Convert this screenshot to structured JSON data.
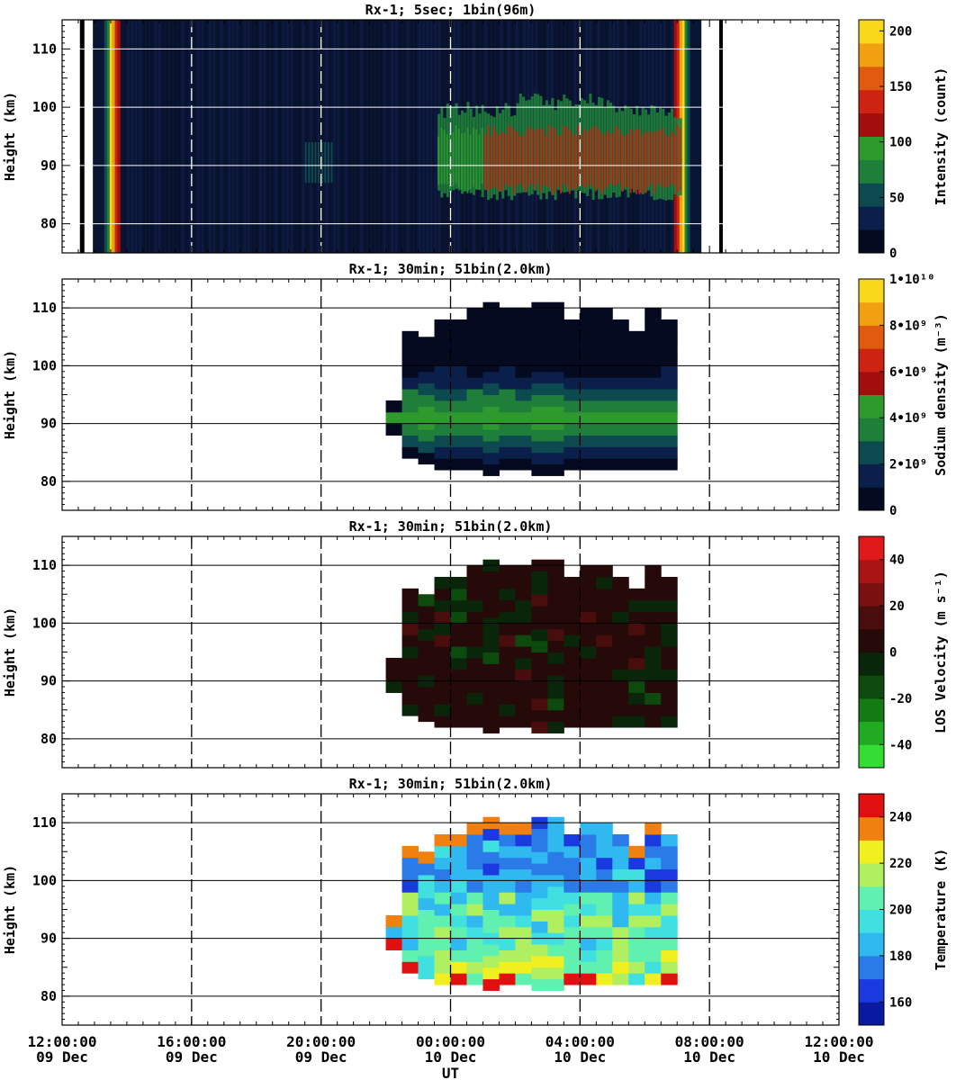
{
  "figure": {
    "xlabel": "UT",
    "x_ticks": [
      {
        "time": "12:00:00",
        "day": "09 Dec"
      },
      {
        "time": "16:00:00",
        "day": "09 Dec"
      },
      {
        "time": "20:00:00",
        "day": "09 Dec"
      },
      {
        "time": "00:00:00",
        "day": "10 Dec"
      },
      {
        "time": "04:00:00",
        "day": "10 Dec"
      },
      {
        "time": "08:00:00",
        "day": "10 Dec"
      },
      {
        "time": "12:00:00",
        "day": "10 Dec"
      }
    ]
  },
  "chart_data": [
    {
      "type": "heatmap",
      "title": "Rx-1;  5sec; 1bin(96m)",
      "ylabel": "Height (km)",
      "xlim": [
        "2021-12-09 12:00:00",
        "2021-12-10 12:00:00"
      ],
      "x_units": "hours since 09 Dec 12:00 UT",
      "ylim": [
        75,
        115
      ],
      "y_ticks": [
        80,
        90,
        100,
        110
      ],
      "colorbar": {
        "label": "Intensity (count)",
        "range": [
          0,
          210
        ],
        "ticks": [
          "0",
          "50",
          "100",
          "150",
          "200"
        ],
        "colors": [
          "#050a20",
          "#0a1f4a",
          "#0d4a4f",
          "#1f7f3a",
          "#2e9a2e",
          "#a30d0d",
          "#cc2410",
          "#e05a10",
          "#f0a010",
          "#f8d81a"
        ]
      },
      "features": {
        "edge_bright_start_ut_h": 1.3,
        "edge_bright_end_ut_h": 19.4,
        "layer_start_ut_h": 11.6,
        "layer_end_ut_h": 19.1,
        "layer_alt_km": [
          84,
          101
        ],
        "layer_peak_alt_km": 92
      }
    },
    {
      "type": "heatmap",
      "title": "Rx-1; 30min; 51bin(2.0km)",
      "ylabel": "Height (km)",
      "ylim": [
        75,
        115
      ],
      "y_ticks": [
        80,
        90,
        100,
        110
      ],
      "colorbar": {
        "label": "Sodium density (m⁻³)",
        "range": [
          0,
          10000000000.0
        ],
        "ticks": [
          "0",
          "2•10⁹",
          "4•10⁹",
          "6•10⁹",
          "8•10⁹",
          "1•10¹⁰"
        ],
        "colors": [
          "#050a20",
          "#0a1f4a",
          "#0d4a4f",
          "#1f7f3a",
          "#2e9a2e",
          "#a30d0d",
          "#cc2410",
          "#e05a10",
          "#f0a010",
          "#f8d81a"
        ]
      },
      "columns": [
        {
          "t": 10.0,
          "bottom": 88,
          "top": 93
        },
        {
          "t": 10.5,
          "bottom": 84,
          "top": 106
        },
        {
          "t": 11.0,
          "bottom": 83,
          "top": 105
        },
        {
          "t": 11.5,
          "bottom": 82,
          "top": 108
        },
        {
          "t": 12.0,
          "bottom": 82,
          "top": 107
        },
        {
          "t": 12.5,
          "bottom": 82,
          "top": 109
        },
        {
          "t": 13.0,
          "bottom": 81,
          "top": 110
        },
        {
          "t": 13.5,
          "bottom": 82,
          "top": 109
        },
        {
          "t": 14.0,
          "bottom": 82,
          "top": 109
        },
        {
          "t": 14.5,
          "bottom": 81,
          "top": 110
        },
        {
          "t": 15.0,
          "bottom": 81,
          "top": 111
        },
        {
          "t": 15.5,
          "bottom": 82,
          "top": 108
        },
        {
          "t": 16.0,
          "bottom": 82,
          "top": 109
        },
        {
          "t": 16.5,
          "bottom": 82,
          "top": 109
        },
        {
          "t": 17.0,
          "bottom": 82,
          "top": 108
        },
        {
          "t": 17.5,
          "bottom": 82,
          "top": 106
        },
        {
          "t": 18.0,
          "bottom": 82,
          "top": 110
        },
        {
          "t": 18.5,
          "bottom": 82,
          "top": 107
        }
      ],
      "peak_alt_km": 91,
      "peak_density": 4200000000.0
    },
    {
      "type": "heatmap",
      "title": "Rx-1; 30min; 51bin(2.0km)",
      "ylabel": "Height (km)",
      "ylim": [
        75,
        115
      ],
      "y_ticks": [
        80,
        90,
        100,
        110
      ],
      "colorbar": {
        "label": "LOS Velocity (m s⁻¹)",
        "range": [
          -50,
          50
        ],
        "ticks": [
          "-40",
          "-20",
          "0",
          "20",
          "40"
        ],
        "colors": [
          "#33dd33",
          "#22aa22",
          "#147a14",
          "#0d4a0d",
          "#0a260a",
          "#260a0a",
          "#4a0d0d",
          "#7a1010",
          "#aa1414",
          "#e01a1a"
        ]
      },
      "columns": [
        {
          "t": 10.0,
          "bottom": 88,
          "top": 93
        },
        {
          "t": 10.5,
          "bottom": 84,
          "top": 106
        },
        {
          "t": 11.0,
          "bottom": 83,
          "top": 105
        },
        {
          "t": 11.5,
          "bottom": 82,
          "top": 108
        },
        {
          "t": 12.0,
          "bottom": 82,
          "top": 107
        },
        {
          "t": 12.5,
          "bottom": 82,
          "top": 109
        },
        {
          "t": 13.0,
          "bottom": 81,
          "top": 110
        },
        {
          "t": 13.5,
          "bottom": 82,
          "top": 109
        },
        {
          "t": 14.0,
          "bottom": 82,
          "top": 109
        },
        {
          "t": 14.5,
          "bottom": 81,
          "top": 110
        },
        {
          "t": 15.0,
          "bottom": 81,
          "top": 111
        },
        {
          "t": 15.5,
          "bottom": 82,
          "top": 108
        },
        {
          "t": 16.0,
          "bottom": 82,
          "top": 109
        },
        {
          "t": 16.5,
          "bottom": 82,
          "top": 109
        },
        {
          "t": 17.0,
          "bottom": 82,
          "top": 108
        },
        {
          "t": 17.5,
          "bottom": 82,
          "top": 106
        },
        {
          "t": 18.0,
          "bottom": 82,
          "top": 110
        },
        {
          "t": 18.5,
          "bottom": 82,
          "top": 107
        }
      ]
    },
    {
      "type": "heatmap",
      "title": "Rx-1; 30min; 51bin(2.0km)",
      "ylabel": "Height (km)",
      "ylim": [
        75,
        115
      ],
      "y_ticks": [
        80,
        90,
        100,
        110
      ],
      "colorbar": {
        "label": "Temperature (K)",
        "range": [
          150,
          250
        ],
        "ticks": [
          "160",
          "180",
          "200",
          "220",
          "240"
        ],
        "colors": [
          "#0a1aa0",
          "#1a3ae0",
          "#2a7ae8",
          "#30b8f0",
          "#40e0e0",
          "#60f0b0",
          "#b0f060",
          "#f0f020",
          "#f08010",
          "#e01010"
        ]
      },
      "columns": [
        {
          "t": 10.0,
          "bottom": 88,
          "top": 93
        },
        {
          "t": 10.5,
          "bottom": 84,
          "top": 106
        },
        {
          "t": 11.0,
          "bottom": 83,
          "top": 105
        },
        {
          "t": 11.5,
          "bottom": 82,
          "top": 108
        },
        {
          "t": 12.0,
          "bottom": 82,
          "top": 107
        },
        {
          "t": 12.5,
          "bottom": 82,
          "top": 109
        },
        {
          "t": 13.0,
          "bottom": 81,
          "top": 110
        },
        {
          "t": 13.5,
          "bottom": 82,
          "top": 109
        },
        {
          "t": 14.0,
          "bottom": 82,
          "top": 109
        },
        {
          "t": 14.5,
          "bottom": 81,
          "top": 110
        },
        {
          "t": 15.0,
          "bottom": 81,
          "top": 111
        },
        {
          "t": 15.5,
          "bottom": 82,
          "top": 108
        },
        {
          "t": 16.0,
          "bottom": 82,
          "top": 109
        },
        {
          "t": 16.5,
          "bottom": 82,
          "top": 109
        },
        {
          "t": 17.0,
          "bottom": 82,
          "top": 108
        },
        {
          "t": 17.5,
          "bottom": 82,
          "top": 106
        },
        {
          "t": 18.0,
          "bottom": 82,
          "top": 110
        },
        {
          "t": 18.5,
          "bottom": 82,
          "top": 107
        }
      ]
    }
  ]
}
